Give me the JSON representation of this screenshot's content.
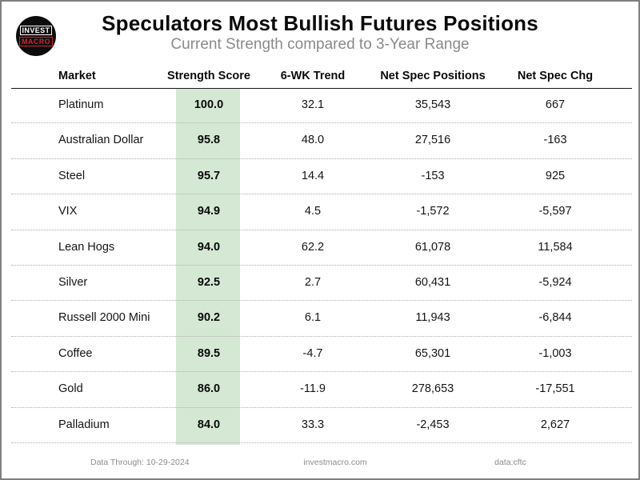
{
  "header": {
    "title": "Speculators Most Bullish Futures Positions",
    "subtitle": "Current Strength compared to 3-Year Range"
  },
  "logo": {
    "line1": "INVEST",
    "line2": "MACRO"
  },
  "table": {
    "columns": [
      "Market",
      "Strength Score",
      "6-WK Trend",
      "Net Spec Positions",
      "Net Spec Chg"
    ],
    "rows": [
      {
        "market": "Platinum",
        "score": "100.0",
        "trend": "32.1",
        "net_pos": "35,543",
        "chg": "667"
      },
      {
        "market": "Australian Dollar",
        "score": "95.8",
        "trend": "48.0",
        "net_pos": "27,516",
        "chg": "-163"
      },
      {
        "market": "Steel",
        "score": "95.7",
        "trend": "14.4",
        "net_pos": "-153",
        "chg": "925"
      },
      {
        "market": "VIX",
        "score": "94.9",
        "trend": "4.5",
        "net_pos": "-1,572",
        "chg": "-5,597"
      },
      {
        "market": "Lean Hogs",
        "score": "94.0",
        "trend": "62.2",
        "net_pos": "61,078",
        "chg": "11,584"
      },
      {
        "market": "Silver",
        "score": "92.5",
        "trend": "2.7",
        "net_pos": "60,431",
        "chg": "-5,924"
      },
      {
        "market": "Russell 2000 Mini",
        "score": "90.2",
        "trend": "6.1",
        "net_pos": "11,943",
        "chg": "-6,844"
      },
      {
        "market": "Coffee",
        "score": "89.5",
        "trend": "-4.7",
        "net_pos": "65,301",
        "chg": "-1,003"
      },
      {
        "market": "Gold",
        "score": "86.0",
        "trend": "-11.9",
        "net_pos": "278,653",
        "chg": "-17,551"
      },
      {
        "market": "Palladium",
        "score": "84.0",
        "trend": "33.3",
        "net_pos": "-2,453",
        "chg": "2,627"
      }
    ]
  },
  "footer": {
    "data_through": "Data Through: 10-29-2024",
    "site": "investmacro.com",
    "source": "data:cftc"
  },
  "colors": {
    "score_band": "#d5e8d4",
    "logo_red": "#d8222a",
    "subtitle_gray": "#8a8a8a",
    "footer_gray": "#8c8c8c",
    "border_gray": "#808080"
  },
  "chart_data": {
    "type": "table",
    "title": "Speculators Most Bullish Futures Positions",
    "subtitle": "Current Strength compared to 3-Year Range",
    "columns": [
      "Market",
      "Strength Score",
      "6-WK Trend",
      "Net Spec Positions",
      "Net Spec Chg"
    ],
    "rows": [
      [
        "Platinum",
        100.0,
        32.1,
        35543,
        667
      ],
      [
        "Australian Dollar",
        95.8,
        48.0,
        27516,
        -163
      ],
      [
        "Steel",
        95.7,
        14.4,
        -153,
        925
      ],
      [
        "VIX",
        94.9,
        4.5,
        -1572,
        -5597
      ],
      [
        "Lean Hogs",
        94.0,
        62.2,
        61078,
        11584
      ],
      [
        "Silver",
        92.5,
        2.7,
        60431,
        -5924
      ],
      [
        "Russell 2000 Mini",
        90.2,
        6.1,
        11943,
        -6844
      ],
      [
        "Coffee",
        89.5,
        -4.7,
        65301,
        -1003
      ],
      [
        "Gold",
        86.0,
        -11.9,
        278653,
        -17551
      ],
      [
        "Palladium",
        84.0,
        33.3,
        -2453,
        2627
      ]
    ],
    "layout_hints": {
      "strength_score_column_highlight": "#d5e8d4",
      "row_separators": "dotted",
      "header_rule": "solid",
      "sorted_by": "Strength Score descending"
    },
    "footnotes": [
      "Data Through: 10-29-2024",
      "investmacro.com",
      "data:cftc"
    ]
  }
}
